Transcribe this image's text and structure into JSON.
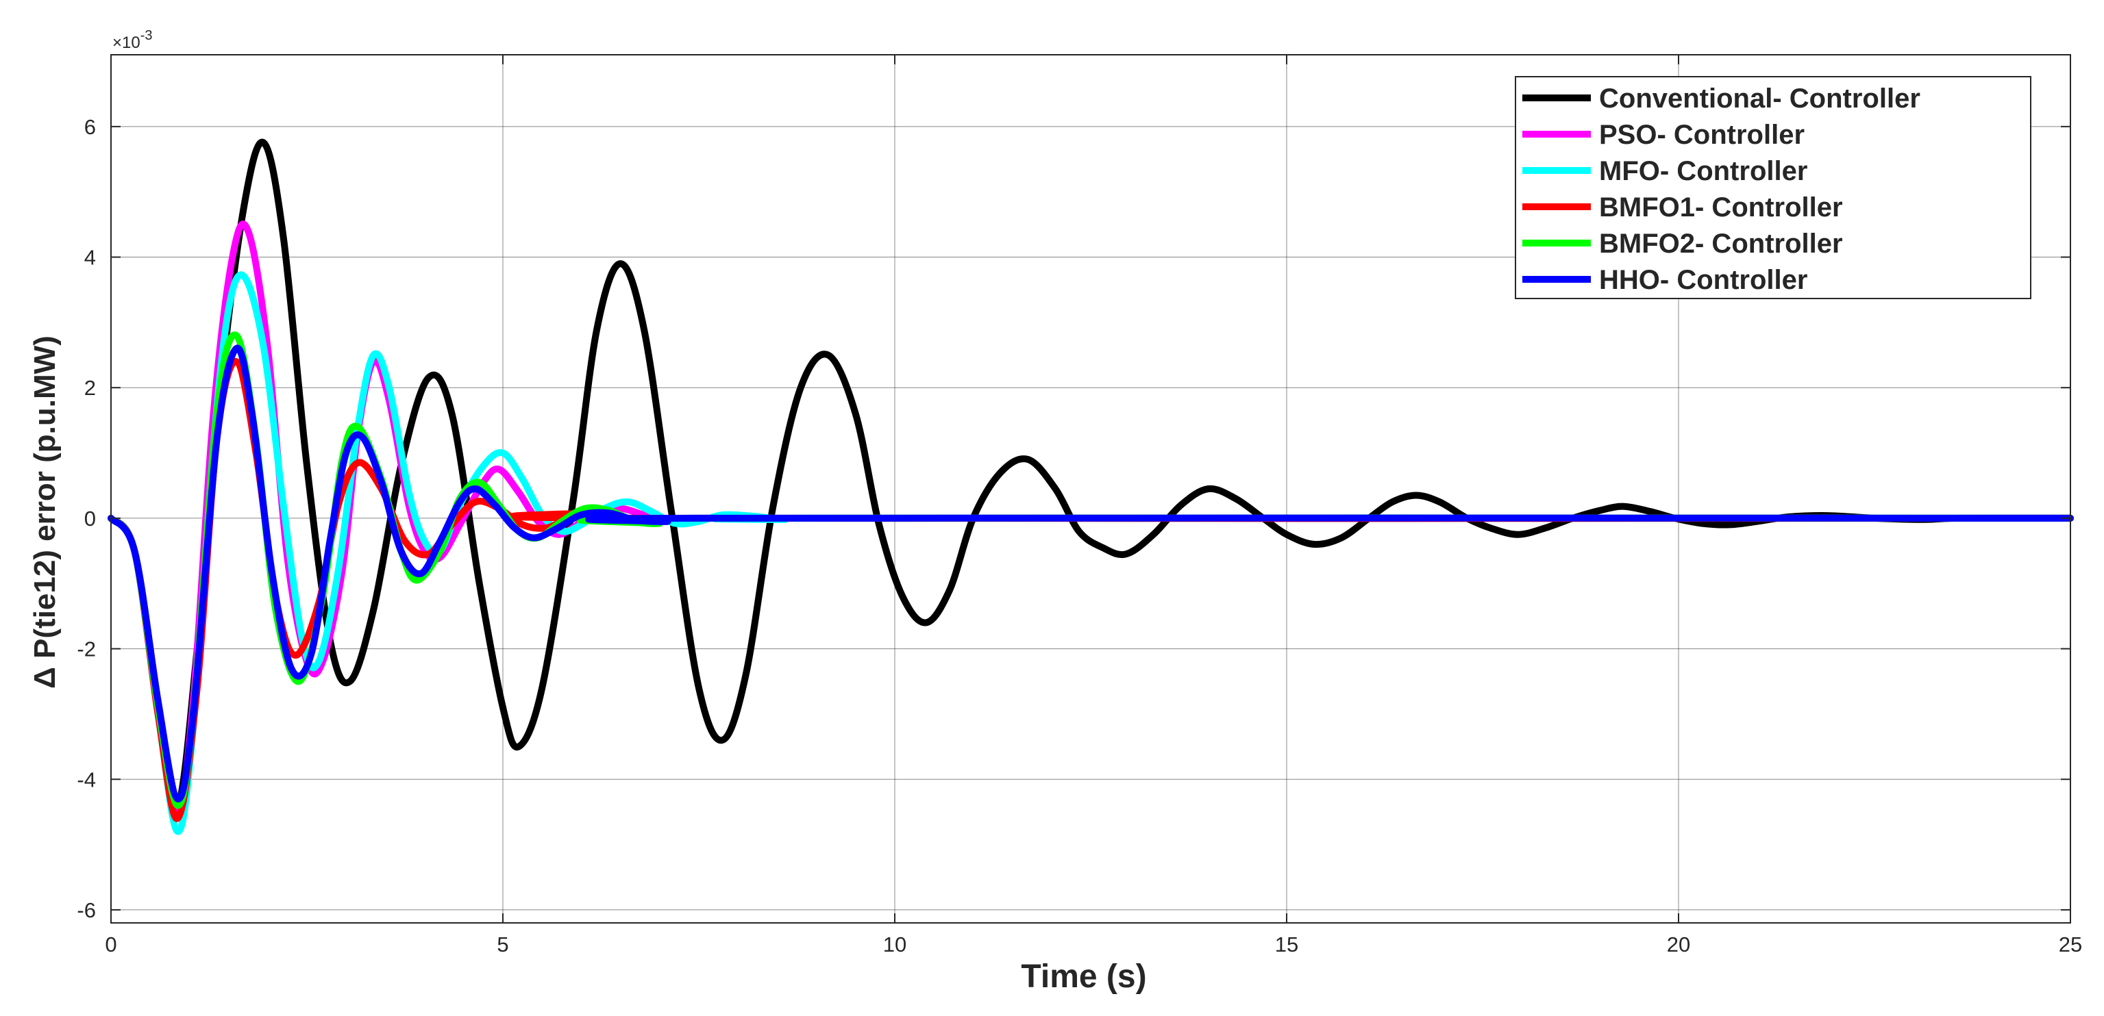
{
  "chart_data": {
    "type": "line",
    "title": "",
    "xlabel": "Time (s)",
    "ylabel": "Δ P(tie12) error (p.u.MW)",
    "y_multiplier_label": "×10",
    "y_multiplier_exponent": "-3",
    "xlim": [
      0,
      25
    ],
    "ylim": [
      -6.2,
      7.1
    ],
    "xticks": [
      0,
      5,
      10,
      15,
      20,
      25
    ],
    "yticks": [
      -6,
      -4,
      -2,
      0,
      2,
      4,
      6
    ],
    "xtick_labels": [
      "0",
      "5",
      "10",
      "15",
      "20",
      "25"
    ],
    "ytick_labels": [
      "-6",
      "-4",
      "-2",
      "0",
      "2",
      "4",
      "6"
    ],
    "grid": true,
    "legend_position": "top-right",
    "series": [
      {
        "name": "Conventional- Controller",
        "color": "#000000",
        "points": [
          [
            0,
            0
          ],
          [
            0.3,
            -0.5
          ],
          [
            0.6,
            -2.8
          ],
          [
            0.85,
            -4.4
          ],
          [
            1.1,
            -2.0
          ],
          [
            1.4,
            2.0
          ],
          [
            1.7,
            4.8
          ],
          [
            1.95,
            5.75
          ],
          [
            2.2,
            4.3
          ],
          [
            2.5,
            0.8
          ],
          [
            2.8,
            -1.9
          ],
          [
            3.05,
            -2.5
          ],
          [
            3.35,
            -1.4
          ],
          [
            3.7,
            0.8
          ],
          [
            4.05,
            2.15
          ],
          [
            4.35,
            1.6
          ],
          [
            4.7,
            -1.0
          ],
          [
            5.0,
            -2.9
          ],
          [
            5.2,
            -3.5
          ],
          [
            5.5,
            -2.6
          ],
          [
            5.9,
            0.3
          ],
          [
            6.2,
            2.9
          ],
          [
            6.5,
            3.9
          ],
          [
            6.8,
            2.9
          ],
          [
            7.15,
            0.1
          ],
          [
            7.5,
            -2.6
          ],
          [
            7.8,
            -3.4
          ],
          [
            8.1,
            -2.4
          ],
          [
            8.45,
            0.2
          ],
          [
            8.8,
            2.0
          ],
          [
            9.15,
            2.5
          ],
          [
            9.5,
            1.6
          ],
          [
            9.8,
            -0.1
          ],
          [
            10.1,
            -1.2
          ],
          [
            10.4,
            -1.6
          ],
          [
            10.7,
            -1.1
          ],
          [
            11.0,
            0
          ],
          [
            11.35,
            0.7
          ],
          [
            11.7,
            0.9
          ],
          [
            12.05,
            0.45
          ],
          [
            12.35,
            -0.2
          ],
          [
            12.65,
            -0.45
          ],
          [
            12.95,
            -0.55
          ],
          [
            13.3,
            -0.25
          ],
          [
            13.65,
            0.2
          ],
          [
            14.0,
            0.45
          ],
          [
            14.35,
            0.3
          ],
          [
            14.7,
            0
          ],
          [
            15.0,
            -0.25
          ],
          [
            15.35,
            -0.4
          ],
          [
            15.7,
            -0.3
          ],
          [
            16.05,
            0
          ],
          [
            16.35,
            0.25
          ],
          [
            16.65,
            0.35
          ],
          [
            16.95,
            0.25
          ],
          [
            17.3,
            0
          ],
          [
            17.6,
            -0.15
          ],
          [
            17.95,
            -0.25
          ],
          [
            18.3,
            -0.15
          ],
          [
            18.65,
            0
          ],
          [
            19.0,
            0.12
          ],
          [
            19.3,
            0.18
          ],
          [
            19.65,
            0.1
          ],
          [
            19.95,
            0
          ],
          [
            20.3,
            -0.08
          ],
          [
            20.65,
            -0.1
          ],
          [
            21.0,
            -0.05
          ],
          [
            21.4,
            0.02
          ],
          [
            21.9,
            0.04
          ],
          [
            22.5,
            0
          ],
          [
            23.1,
            -0.02
          ],
          [
            23.6,
            0
          ],
          [
            25,
            0
          ]
        ]
      },
      {
        "name": "PSO- Controller",
        "color": "#ff00ff",
        "points": [
          [
            0,
            0
          ],
          [
            0.3,
            -0.5
          ],
          [
            0.6,
            -2.9
          ],
          [
            0.85,
            -4.5
          ],
          [
            1.05,
            -2.8
          ],
          [
            1.3,
            1.5
          ],
          [
            1.55,
            4.0
          ],
          [
            1.75,
            4.4
          ],
          [
            2.0,
            2.6
          ],
          [
            2.25,
            -0.6
          ],
          [
            2.5,
            -2.2
          ],
          [
            2.7,
            -2.2
          ],
          [
            2.95,
            -0.8
          ],
          [
            3.15,
            1.3
          ],
          [
            3.35,
            2.4
          ],
          [
            3.55,
            1.8
          ],
          [
            3.8,
            0.2
          ],
          [
            4.0,
            -0.5
          ],
          [
            4.2,
            -0.6
          ],
          [
            4.45,
            -0.1
          ],
          [
            4.75,
            0.55
          ],
          [
            4.95,
            0.75
          ],
          [
            5.2,
            0.4
          ],
          [
            5.45,
            -0.05
          ],
          [
            5.7,
            -0.25
          ],
          [
            5.95,
            -0.1
          ],
          [
            6.2,
            0.1
          ],
          [
            6.5,
            0.15
          ],
          [
            6.8,
            0.05
          ],
          [
            7.1,
            -0.05
          ],
          [
            7.5,
            0
          ],
          [
            25,
            0
          ]
        ]
      },
      {
        "name": "MFO- Controller",
        "color": "#00ffff",
        "points": [
          [
            0,
            0
          ],
          [
            0.3,
            -0.5
          ],
          [
            0.6,
            -3.0
          ],
          [
            0.85,
            -4.8
          ],
          [
            1.05,
            -3.2
          ],
          [
            1.3,
            1.0
          ],
          [
            1.5,
            3.2
          ],
          [
            1.7,
            3.7
          ],
          [
            1.95,
            2.6
          ],
          [
            2.2,
            0.2
          ],
          [
            2.45,
            -1.9
          ],
          [
            2.65,
            -2.2
          ],
          [
            2.9,
            -0.8
          ],
          [
            3.15,
            1.4
          ],
          [
            3.35,
            2.5
          ],
          [
            3.55,
            2.0
          ],
          [
            3.8,
            0.4
          ],
          [
            4.0,
            -0.35
          ],
          [
            4.2,
            -0.5
          ],
          [
            4.45,
            0.2
          ],
          [
            4.75,
            0.8
          ],
          [
            5.0,
            1.0
          ],
          [
            5.25,
            0.6
          ],
          [
            5.5,
            0.05
          ],
          [
            5.75,
            -0.2
          ],
          [
            6.0,
            -0.1
          ],
          [
            6.3,
            0.15
          ],
          [
            6.6,
            0.25
          ],
          [
            6.9,
            0.1
          ],
          [
            7.2,
            -0.08
          ],
          [
            7.5,
            -0.05
          ],
          [
            7.8,
            0.05
          ],
          [
            8.2,
            0.03
          ],
          [
            8.6,
            -0.02
          ],
          [
            9.0,
            0
          ],
          [
            25,
            0
          ]
        ]
      },
      {
        "name": "BMFO1- Controller",
        "color": "#ff0000",
        "points": [
          [
            0,
            0
          ],
          [
            0.3,
            -0.5
          ],
          [
            0.6,
            -3.0
          ],
          [
            0.85,
            -4.6
          ],
          [
            1.1,
            -2.6
          ],
          [
            1.35,
            1.2
          ],
          [
            1.6,
            2.4
          ],
          [
            1.85,
            1.0
          ],
          [
            2.1,
            -1.2
          ],
          [
            2.35,
            -2.1
          ],
          [
            2.65,
            -1.3
          ],
          [
            2.9,
            0.2
          ],
          [
            3.15,
            0.85
          ],
          [
            3.45,
            0.45
          ],
          [
            3.75,
            -0.35
          ],
          [
            4.05,
            -0.55
          ],
          [
            4.35,
            -0.1
          ],
          [
            4.65,
            0.25
          ],
          [
            4.95,
            0.15
          ],
          [
            5.25,
            -0.1
          ],
          [
            5.55,
            -0.15
          ],
          [
            5.85,
            0
          ],
          [
            6.2,
            0.08
          ],
          [
            6.6,
            0
          ],
          [
            25,
            0
          ]
        ]
      },
      {
        "name": "BMFO2- Controller",
        "color": "#00ff00",
        "points": [
          [
            0,
            0
          ],
          [
            0.3,
            -0.5
          ],
          [
            0.6,
            -2.9
          ],
          [
            0.85,
            -4.4
          ],
          [
            1.05,
            -3.0
          ],
          [
            1.35,
            1.6
          ],
          [
            1.6,
            2.8
          ],
          [
            1.85,
            1.2
          ],
          [
            2.1,
            -1.4
          ],
          [
            2.4,
            -2.5
          ],
          [
            2.7,
            -1.2
          ],
          [
            2.95,
            0.9
          ],
          [
            3.15,
            1.4
          ],
          [
            3.45,
            0.6
          ],
          [
            3.7,
            -0.5
          ],
          [
            3.9,
            -0.95
          ],
          [
            4.2,
            -0.5
          ],
          [
            4.45,
            0.3
          ],
          [
            4.7,
            0.55
          ],
          [
            4.95,
            0.2
          ],
          [
            5.2,
            -0.2
          ],
          [
            5.45,
            -0.3
          ],
          [
            5.75,
            -0.05
          ],
          [
            6.05,
            0.15
          ],
          [
            6.35,
            0.12
          ],
          [
            6.7,
            -0.05
          ],
          [
            7.0,
            -0.08
          ],
          [
            7.4,
            0
          ],
          [
            25,
            0
          ]
        ]
      },
      {
        "name": "HHO- Controller",
        "color": "#0000ff",
        "points": [
          [
            0,
            0
          ],
          [
            0.3,
            -0.5
          ],
          [
            0.6,
            -2.8
          ],
          [
            0.85,
            -4.3
          ],
          [
            1.05,
            -3.0
          ],
          [
            1.35,
            1.2
          ],
          [
            1.6,
            2.6
          ],
          [
            1.8,
            1.6
          ],
          [
            2.05,
            -0.8
          ],
          [
            2.3,
            -2.3
          ],
          [
            2.55,
            -2.1
          ],
          [
            2.8,
            -0.3
          ],
          [
            3.0,
            1.0
          ],
          [
            3.2,
            1.25
          ],
          [
            3.45,
            0.55
          ],
          [
            3.7,
            -0.5
          ],
          [
            3.95,
            -0.85
          ],
          [
            4.2,
            -0.35
          ],
          [
            4.45,
            0.25
          ],
          [
            4.65,
            0.45
          ],
          [
            4.9,
            0.2
          ],
          [
            5.15,
            -0.15
          ],
          [
            5.4,
            -0.3
          ],
          [
            5.7,
            -0.15
          ],
          [
            6.0,
            0.05
          ],
          [
            6.35,
            0.08
          ],
          [
            6.7,
            -0.03
          ],
          [
            7.1,
            -0.05
          ],
          [
            7.5,
            0
          ],
          [
            25,
            0
          ]
        ]
      }
    ]
  }
}
